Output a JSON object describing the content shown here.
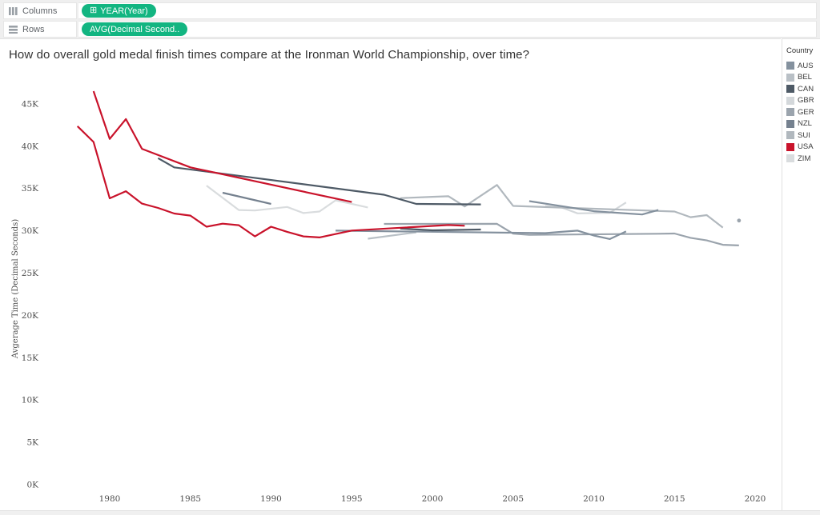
{
  "shelves": {
    "columns_label": "Columns",
    "rows_label": "Rows",
    "columns_pill": "YEAR(Year)",
    "columns_pill_icon": "⊞",
    "rows_pill": "AVG(Decimal Second..",
    "pill_color": "#12b581"
  },
  "title": "How do overall gold medal finish times compare at the Ironman World Championship, over time?",
  "legend": {
    "title": "Country",
    "items": [
      {
        "label": "AUS",
        "color": "#84919e"
      },
      {
        "label": "BEL",
        "color": "#b9c0c6"
      },
      {
        "label": "CAN",
        "color": "#4e5a66"
      },
      {
        "label": "GBR",
        "color": "#d4d8db"
      },
      {
        "label": "GER",
        "color": "#9ba4ad"
      },
      {
        "label": "NZL",
        "color": "#75818f"
      },
      {
        "label": "SUI",
        "color": "#b1b8be"
      },
      {
        "label": "USA",
        "color": "#c9132b"
      },
      {
        "label": "ZIM",
        "color": "#d9dcde"
      }
    ]
  },
  "chart_data": {
    "type": "line",
    "title": "How do overall gold medal finish times compare at the Ironman World Championship, over time?",
    "xlabel": "",
    "ylabel": "Avgerage Time (Decimal Seconds)",
    "x_ticks": [
      1980,
      1985,
      1990,
      1995,
      2000,
      2005,
      2010,
      2015,
      2020
    ],
    "y_ticks": [
      {
        "label": "0K",
        "value": 0
      },
      {
        "label": "5K",
        "value": 5000
      },
      {
        "label": "10K",
        "value": 10000
      },
      {
        "label": "15K",
        "value": 15000
      },
      {
        "label": "20K",
        "value": 20000
      },
      {
        "label": "25K",
        "value": 25000
      },
      {
        "label": "30K",
        "value": 30000
      },
      {
        "label": "35K",
        "value": 35000
      },
      {
        "label": "40K",
        "value": 40000
      },
      {
        "label": "45K",
        "value": 45000
      }
    ],
    "xlim": [
      1977,
      2020.5
    ],
    "ylim": [
      0,
      47500
    ],
    "grid": false,
    "legend_position": "right",
    "units": "decimal seconds (average winning time per year)",
    "series": [
      {
        "name": "ZIM women",
        "country": "ZIM",
        "points": [
          [
            1986,
            35340
          ],
          [
            1988,
            32460
          ],
          [
            1989,
            32400
          ],
          [
            1991,
            32820
          ],
          [
            1992,
            32100
          ],
          [
            1993,
            32280
          ],
          [
            1994,
            33600
          ],
          [
            1996,
            32760
          ]
        ]
      },
      {
        "name": "GBR women",
        "country": "GBR",
        "points": [
          [
            2007,
            32930
          ],
          [
            2008,
            32760
          ],
          [
            2009,
            32060
          ],
          [
            2011,
            32130
          ],
          [
            2012,
            33350
          ]
        ]
      },
      {
        "name": "BEL men",
        "country": "BEL",
        "points": [
          [
            1996,
            29060
          ],
          [
            1999,
            29820
          ]
        ]
      },
      {
        "name": "SUI women",
        "country": "SUI",
        "points": [
          [
            1998,
            33860
          ],
          [
            2000,
            34020
          ],
          [
            2001,
            34080
          ],
          [
            2002,
            32870
          ],
          [
            2004,
            35420
          ],
          [
            2005,
            32940
          ],
          [
            2015,
            32280
          ],
          [
            2016,
            31610
          ],
          [
            2017,
            31850
          ],
          [
            2018,
            30380
          ]
        ]
      },
      {
        "name": "GER men",
        "country": "GER",
        "points": [
          [
            1997,
            30810
          ],
          [
            2004,
            30820
          ],
          [
            2005,
            29660
          ],
          [
            2006,
            29520
          ],
          [
            2014,
            29650
          ],
          [
            2015,
            29680
          ],
          [
            2016,
            29170
          ],
          [
            2017,
            28870
          ],
          [
            2018,
            28350
          ],
          [
            2019,
            28270
          ]
        ]
      },
      {
        "name": "GER women",
        "country": "GER",
        "points": [
          [
            2019,
            31210
          ]
        ]
      },
      {
        "name": "AUS men",
        "country": "AUS",
        "points": [
          [
            1994,
            30020
          ],
          [
            2007,
            29730
          ],
          [
            2008,
            29880
          ],
          [
            2009,
            30020
          ],
          [
            2010,
            29440
          ],
          [
            2011,
            29030
          ],
          [
            2012,
            29920
          ]
        ]
      },
      {
        "name": "AUS women",
        "country": "AUS",
        "points": [
          [
            2006,
            33510
          ],
          [
            2010,
            32320
          ],
          [
            2013,
            31930
          ],
          [
            2014,
            32460
          ]
        ]
      },
      {
        "name": "NZL women",
        "country": "NZL",
        "points": [
          [
            1987,
            34500
          ],
          [
            1990,
            33180
          ]
        ]
      },
      {
        "name": "CAN women",
        "country": "CAN",
        "points": [
          [
            1983,
            38580
          ],
          [
            1984,
            37500
          ],
          [
            1997,
            34260
          ],
          [
            1999,
            33180
          ],
          [
            2003,
            33120
          ]
        ]
      },
      {
        "name": "CAN men",
        "country": "CAN",
        "points": [
          [
            1998,
            30260
          ],
          [
            2000,
            30060
          ],
          [
            2003,
            30150
          ]
        ]
      },
      {
        "name": "USA men",
        "country": "USA",
        "points": [
          [
            1978,
            42360
          ],
          [
            1979,
            40500
          ],
          [
            1980,
            33840
          ],
          [
            1981,
            34680
          ],
          [
            1982,
            33210
          ],
          [
            1983,
            32700
          ],
          [
            1984,
            32040
          ],
          [
            1985,
            31800
          ],
          [
            1986,
            30480
          ],
          [
            1987,
            30840
          ],
          [
            1988,
            30660
          ],
          [
            1989,
            29340
          ],
          [
            1990,
            30480
          ],
          [
            1991,
            29880
          ],
          [
            1992,
            29340
          ],
          [
            1993,
            29220
          ],
          [
            1995,
            30030
          ],
          [
            2001,
            30680
          ],
          [
            2002,
            30600
          ]
        ]
      },
      {
        "name": "USA women",
        "country": "USA",
        "points": [
          [
            1979,
            46500
          ],
          [
            1980,
            40860
          ],
          [
            1981,
            43200
          ],
          [
            1982,
            39690
          ],
          [
            1985,
            37500
          ],
          [
            1995,
            33400
          ]
        ]
      }
    ]
  }
}
